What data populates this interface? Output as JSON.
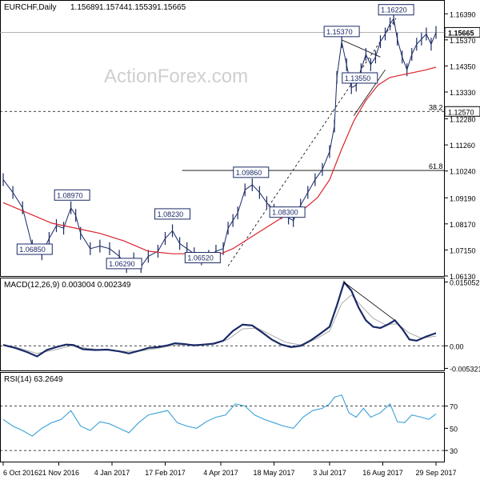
{
  "chart_data": [
    {
      "type": "line",
      "panel": "price",
      "title": "EURCHF,Daily",
      "ohlc": {
        "open": 1.15689,
        "high": 1.15744,
        "low": 1.15539,
        "close": 1.15665
      },
      "watermark": "ActionForex.com",
      "ylim": [
        1.0613,
        1.1693
      ],
      "y_ticks": [
        1.1639,
        1.1537,
        1.1435,
        1.1333,
        1.1228,
        1.1126,
        1.1024,
        1.0919,
        1.0817,
        1.0715,
        1.0613
      ],
      "x_labels": [
        "6 Oct 2016",
        "21 Nov 2016",
        "4 Jan 2017",
        "17 Feb 2017",
        "4 Apr 2017",
        "18 May 2017",
        "3 Jul 2017",
        "16 Aug 2017",
        "29 Sep 2017"
      ],
      "x_label_days": [
        0,
        46,
        90,
        134,
        180,
        224,
        270,
        314,
        358
      ],
      "current_price": 1.15665,
      "fib_levels": [
        {
          "label": "38.2",
          "value": 1.1257
        },
        {
          "label": "61.8",
          "value": 1.1026
        }
      ],
      "annotations": [
        {
          "text": "1.08970",
          "day": 57,
          "value": 1.0897
        },
        {
          "text": "1.06850",
          "day": 26,
          "value": 1.0685
        },
        {
          "text": "1.08230",
          "day": 140,
          "value": 1.0823
        },
        {
          "text": "1.06290",
          "day": 100,
          "value": 1.0629
        },
        {
          "text": "1.06520",
          "day": 165,
          "value": 1.0652
        },
        {
          "text": "1.09860",
          "day": 205,
          "value": 1.0986
        },
        {
          "text": "1.08300",
          "day": 235,
          "value": 1.083
        },
        {
          "text": "1.15370",
          "day": 280,
          "value": 1.1537
        },
        {
          "text": "1.13550",
          "day": 295,
          "value": 1.1355
        },
        {
          "text": "1.16220",
          "day": 325,
          "value": 1.1622
        }
      ],
      "series": [
        {
          "name": "",
          "points": [
            [
              0,
              1.099
            ],
            [
              8,
              1.094
            ],
            [
              16,
              1.088
            ],
            [
              24,
              1.073
            ],
            [
              32,
              1.07
            ],
            [
              38,
              1.076
            ],
            [
              44,
              1.081
            ],
            [
              50,
              1.08
            ],
            [
              56,
              1.088
            ],
            [
              60,
              1.085
            ],
            [
              64,
              1.078
            ],
            [
              72,
              1.072
            ],
            [
              80,
              1.073
            ],
            [
              88,
              1.072
            ],
            [
              96,
              1.069
            ],
            [
              102,
              1.065
            ],
            [
              108,
              1.068
            ],
            [
              114,
              1.065
            ],
            [
              120,
              1.069
            ],
            [
              128,
              1.071
            ],
            [
              134,
              1.076
            ],
            [
              140,
              1.079
            ],
            [
              146,
              1.074
            ],
            [
              152,
              1.072
            ],
            [
              158,
              1.07
            ],
            [
              164,
              1.068
            ],
            [
              170,
              1.069
            ],
            [
              176,
              1.071
            ],
            [
              182,
              1.072
            ],
            [
              186,
              1.08
            ],
            [
              190,
              1.083
            ],
            [
              194,
              1.086
            ],
            [
              200,
              1.095
            ],
            [
              206,
              1.097
            ],
            [
              212,
              1.094
            ],
            [
              218,
              1.09
            ],
            [
              224,
              1.087
            ],
            [
              230,
              1.086
            ],
            [
              236,
              1.084
            ],
            [
              240,
              1.083
            ],
            [
              246,
              1.089
            ],
            [
              252,
              1.094
            ],
            [
              258,
              1.099
            ],
            [
              264,
              1.103
            ],
            [
              270,
              1.11
            ],
            [
              274,
              1.12
            ],
            [
              276,
              1.139
            ],
            [
              280,
              1.153
            ],
            [
              284,
              1.144
            ],
            [
              288,
              1.135
            ],
            [
              292,
              1.136
            ],
            [
              296,
              1.142
            ],
            [
              300,
              1.148
            ],
            [
              304,
              1.144
            ],
            [
              308,
              1.147
            ],
            [
              312,
              1.153
            ],
            [
              316,
              1.156
            ],
            [
              320,
              1.16
            ],
            [
              323,
              1.162
            ],
            [
              326,
              1.154
            ],
            [
              330,
              1.147
            ],
            [
              334,
              1.142
            ],
            [
              338,
              1.148
            ],
            [
              342,
              1.152
            ],
            [
              346,
              1.154
            ],
            [
              350,
              1.156
            ],
            [
              354,
              1.152
            ],
            [
              358,
              1.1566
            ]
          ]
        },
        {
          "name": "",
          "points": [
            [
              0,
              1.09
            ],
            [
              20,
              1.086
            ],
            [
              40,
              1.082
            ],
            [
              60,
              1.08
            ],
            [
              80,
              1.078
            ],
            [
              100,
              1.075
            ],
            [
              120,
              1.071
            ],
            [
              140,
              1.07
            ],
            [
              160,
              1.07
            ],
            [
              180,
              1.07
            ],
            [
              190,
              1.072
            ],
            [
              200,
              1.075
            ],
            [
              210,
              1.078
            ],
            [
              220,
              1.081
            ],
            [
              230,
              1.084
            ],
            [
              240,
              1.086
            ],
            [
              250,
              1.088
            ],
            [
              260,
              1.092
            ],
            [
              270,
              1.099
            ],
            [
              280,
              1.111
            ],
            [
              290,
              1.122
            ],
            [
              300,
              1.13
            ],
            [
              310,
              1.136
            ],
            [
              320,
              1.139
            ],
            [
              330,
              1.14
            ],
            [
              340,
              1.141
            ],
            [
              350,
              1.142
            ],
            [
              358,
              1.143
            ]
          ]
        }
      ]
    },
    {
      "type": "line",
      "panel": "macd",
      "title": "MACD(12,26,9) 0.003004 0.002349",
      "ylim": [
        -0.0058,
        0.0159
      ],
      "y_ticks": [
        0.015052,
        0.0,
        -0.005321
      ],
      "y_tick_labels": [
        "0.015052",
        "0.00",
        "-0.005321"
      ],
      "series": [
        {
          "name": "",
          "points": [
            [
              0,
              0.0002
            ],
            [
              10,
              -0.0005
            ],
            [
              20,
              -0.0015
            ],
            [
              28,
              -0.0025
            ],
            [
              36,
              -0.001
            ],
            [
              44,
              -0.0003
            ],
            [
              52,
              0.0003
            ],
            [
              58,
              0.0002
            ],
            [
              66,
              -0.0008
            ],
            [
              76,
              -0.001
            ],
            [
              86,
              -0.0009
            ],
            [
              96,
              -0.0013
            ],
            [
              104,
              -0.0018
            ],
            [
              112,
              -0.0012
            ],
            [
              120,
              -0.0005
            ],
            [
              128,
              -0.0003
            ],
            [
              136,
              0.0001
            ],
            [
              142,
              0.0006
            ],
            [
              150,
              0.0004
            ],
            [
              158,
              0.0001
            ],
            [
              166,
              0.0003
            ],
            [
              174,
              0.0005
            ],
            [
              182,
              0.0012
            ],
            [
              190,
              0.0035
            ],
            [
              198,
              0.005
            ],
            [
              206,
              0.0048
            ],
            [
              214,
              0.0032
            ],
            [
              222,
              0.0015
            ],
            [
              230,
              0.0003
            ],
            [
              238,
              -0.0003
            ],
            [
              246,
              0.0
            ],
            [
              254,
              0.0012
            ],
            [
              262,
              0.0028
            ],
            [
              270,
              0.0045
            ],
            [
              276,
              0.0095
            ],
            [
              282,
              0.015
            ],
            [
              288,
              0.013
            ],
            [
              294,
              0.009
            ],
            [
              300,
              0.006
            ],
            [
              306,
              0.0045
            ],
            [
              312,
              0.0042
            ],
            [
              318,
              0.005
            ],
            [
              324,
              0.006
            ],
            [
              330,
              0.004
            ],
            [
              336,
              0.0015
            ],
            [
              342,
              0.0012
            ],
            [
              350,
              0.0022
            ],
            [
              358,
              0.003
            ]
          ]
        },
        {
          "name": "",
          "points": [
            [
              0,
              0.0003
            ],
            [
              14,
              -0.0006
            ],
            [
              28,
              -0.0018
            ],
            [
              42,
              -0.001
            ],
            [
              56,
              0.0
            ],
            [
              70,
              -0.0006
            ],
            [
              84,
              -0.001
            ],
            [
              100,
              -0.0013
            ],
            [
              114,
              -0.0012
            ],
            [
              128,
              -0.0006
            ],
            [
              142,
              0.0002
            ],
            [
              158,
              0.0003
            ],
            [
              174,
              0.0004
            ],
            [
              186,
              0.0015
            ],
            [
              198,
              0.004
            ],
            [
              210,
              0.0042
            ],
            [
              222,
              0.0025
            ],
            [
              234,
              0.0008
            ],
            [
              246,
              0.0002
            ],
            [
              258,
              0.0015
            ],
            [
              270,
              0.0035
            ],
            [
              280,
              0.01
            ],
            [
              288,
              0.012
            ],
            [
              296,
              0.0095
            ],
            [
              306,
              0.0065
            ],
            [
              316,
              0.005
            ],
            [
              326,
              0.0052
            ],
            [
              336,
              0.003
            ],
            [
              346,
              0.0018
            ],
            [
              358,
              0.0023
            ]
          ]
        }
      ],
      "trendline": [
        [
          282,
          0.015
        ],
        [
          324,
          0.006
        ]
      ]
    },
    {
      "type": "line",
      "panel": "rsi",
      "title": "RSI(14) 63.2649",
      "ylim": [
        20,
        100
      ],
      "y_ticks": [
        70,
        50,
        30
      ],
      "series": [
        {
          "name": "",
          "points": [
            [
              0,
              58
            ],
            [
              8,
              52
            ],
            [
              16,
              48
            ],
            [
              24,
              43
            ],
            [
              32,
              50
            ],
            [
              40,
              55
            ],
            [
              48,
              58
            ],
            [
              56,
              66
            ],
            [
              64,
              52
            ],
            [
              72,
              48
            ],
            [
              80,
              56
            ],
            [
              88,
              54
            ],
            [
              96,
              50
            ],
            [
              104,
              46
            ],
            [
              112,
              55
            ],
            [
              120,
              62
            ],
            [
              128,
              64
            ],
            [
              136,
              66
            ],
            [
              144,
              55
            ],
            [
              152,
              52
            ],
            [
              160,
              50
            ],
            [
              168,
              56
            ],
            [
              176,
              60
            ],
            [
              184,
              62
            ],
            [
              192,
              72
            ],
            [
              200,
              70
            ],
            [
              208,
              62
            ],
            [
              216,
              58
            ],
            [
              224,
              55
            ],
            [
              232,
              52
            ],
            [
              240,
              50
            ],
            [
              248,
              60
            ],
            [
              256,
              66
            ],
            [
              264,
              68
            ],
            [
              270,
              72
            ],
            [
              274,
              78
            ],
            [
              280,
              80
            ],
            [
              286,
              64
            ],
            [
              292,
              60
            ],
            [
              298,
              68
            ],
            [
              304,
              60
            ],
            [
              312,
              64
            ],
            [
              320,
              72
            ],
            [
              326,
              56
            ],
            [
              332,
              55
            ],
            [
              338,
              62
            ],
            [
              346,
              60
            ],
            [
              352,
              58
            ],
            [
              358,
              63
            ]
          ]
        }
      ]
    }
  ]
}
